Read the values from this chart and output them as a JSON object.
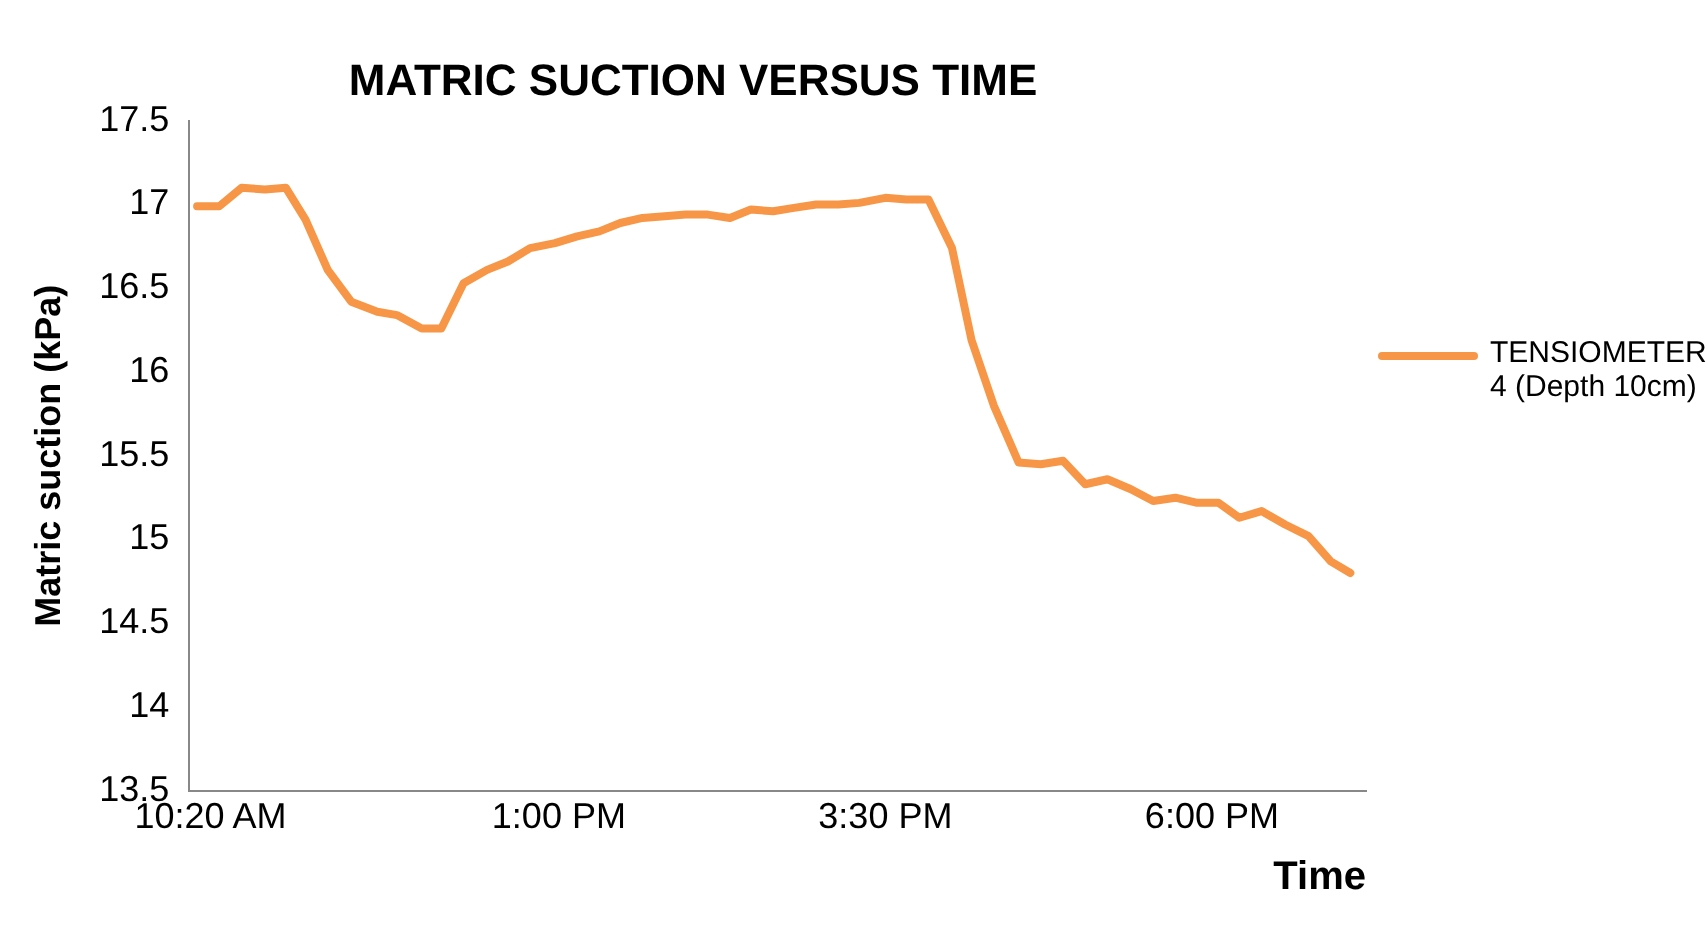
{
  "chart_data": {
    "type": "line",
    "title": "MATRIC SUCTION VERSUS TIME",
    "xlabel": "Time",
    "ylabel": "Matric suction (kPa)",
    "x": [
      10.23,
      10.4,
      10.57,
      10.75,
      10.91,
      11.06,
      11.23,
      11.41,
      11.61,
      11.76,
      11.95,
      12.1,
      12.27,
      12.45,
      12.61,
      12.78,
      12.97,
      13.14,
      13.31,
      13.47,
      13.64,
      13.81,
      13.97,
      14.14,
      14.31,
      14.47,
      14.64,
      14.8,
      14.97,
      15.14,
      15.3,
      15.5,
      15.66,
      15.83,
      16.01,
      16.16,
      16.33,
      16.52,
      16.69,
      16.86,
      17.03,
      17.2,
      17.38,
      17.55,
      17.72,
      17.88,
      18.05,
      18.21,
      18.38,
      18.56,
      18.74,
      18.91,
      19.06
    ],
    "series": [
      {
        "name": "TENSIOMETER 4 (Depth 10cm)",
        "color": "#f79646",
        "values": [
          16.99,
          16.99,
          17.1,
          17.09,
          17.1,
          16.91,
          16.61,
          16.42,
          16.36,
          16.34,
          16.26,
          16.26,
          16.53,
          16.61,
          16.66,
          16.74,
          16.77,
          16.81,
          16.84,
          16.89,
          16.92,
          16.93,
          16.94,
          16.94,
          16.92,
          16.97,
          16.96,
          16.98,
          17.0,
          17.0,
          17.01,
          17.04,
          17.03,
          17.03,
          16.74,
          16.19,
          15.8,
          15.46,
          15.45,
          15.47,
          15.33,
          15.36,
          15.3,
          15.23,
          15.25,
          15.22,
          15.22,
          15.13,
          15.17,
          15.09,
          15.02,
          14.87,
          14.8
        ]
      }
    ],
    "xlim": [
      10.17,
      19.18
    ],
    "xticks": [
      {
        "value": 10.333,
        "label": "10:20 AM"
      },
      {
        "value": 13,
        "label": "1:00 PM"
      },
      {
        "value": 15.5,
        "label": "3:30 PM"
      },
      {
        "value": 18,
        "label": "6:00 PM"
      }
    ],
    "ylim": [
      13.5,
      17.5
    ],
    "yticks": [
      13.5,
      14,
      14.5,
      15,
      15.5,
      16,
      16.5,
      17,
      17.5
    ],
    "grid": false,
    "legend": "right",
    "marker": "none",
    "line_style": "solid"
  }
}
